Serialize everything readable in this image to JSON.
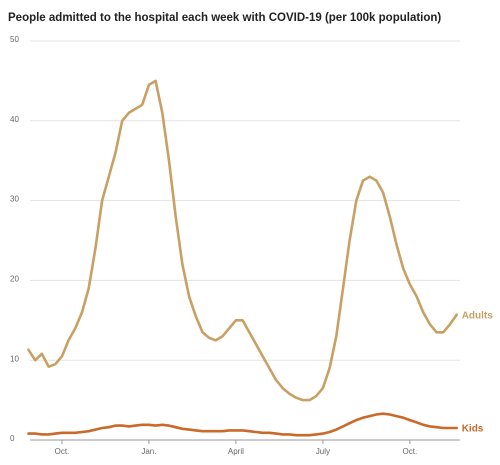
{
  "chart_data": {
    "type": "line",
    "title": "People admitted to the hospital each week with COVID-19 (per 100k population)",
    "categories": [
      null,
      null,
      null,
      null,
      null,
      "Oct.",
      null,
      null,
      null,
      null,
      null,
      null,
      null,
      null,
      null,
      null,
      null,
      null,
      "Jan.",
      null,
      null,
      null,
      null,
      null,
      null,
      null,
      null,
      null,
      null,
      null,
      null,
      "April",
      null,
      null,
      null,
      null,
      null,
      null,
      null,
      null,
      null,
      null,
      null,
      null,
      "July",
      null,
      null,
      null,
      null,
      null,
      null,
      null,
      null,
      null,
      null,
      null,
      null,
      "Oct.",
      null,
      null,
      null,
      null,
      null,
      null,
      null
    ],
    "series": [
      {
        "name": "Adults",
        "color": "#c9a064",
        "values": [
          11.3,
          10,
          10.8,
          9.2,
          9.5,
          10.5,
          12.5,
          14,
          16,
          19,
          24,
          30,
          33,
          36,
          40,
          41,
          41.5,
          42,
          44.5,
          45,
          41,
          35,
          28,
          22,
          18,
          15.5,
          13.5,
          12.8,
          12.5,
          13,
          14,
          15,
          15,
          13.5,
          12,
          10.5,
          9,
          7.5,
          6.5,
          5.8,
          5.3,
          5,
          5,
          5.5,
          6.5,
          9,
          13,
          19,
          25,
          30,
          32.5,
          33,
          32.5,
          31,
          28,
          24.5,
          21.5,
          19.5,
          18,
          16,
          14.5,
          13.5,
          13.5,
          14.5,
          15.7
        ]
      },
      {
        "name": "Kids",
        "color": "#c96a2a",
        "values": [
          0.8,
          0.8,
          0.7,
          0.7,
          0.8,
          0.9,
          0.9,
          0.9,
          1.0,
          1.1,
          1.3,
          1.5,
          1.6,
          1.8,
          1.8,
          1.7,
          1.8,
          1.9,
          1.9,
          1.8,
          1.9,
          1.8,
          1.6,
          1.4,
          1.3,
          1.2,
          1.1,
          1.1,
          1.1,
          1.1,
          1.2,
          1.2,
          1.2,
          1.1,
          1.0,
          0.9,
          0.9,
          0.8,
          0.7,
          0.7,
          0.6,
          0.6,
          0.6,
          0.7,
          0.8,
          1.0,
          1.3,
          1.7,
          2.1,
          2.5,
          2.8,
          3.0,
          3.2,
          3.3,
          3.2,
          3.0,
          2.8,
          2.5,
          2.2,
          1.9,
          1.7,
          1.6,
          1.5,
          1.5,
          1.5
        ]
      }
    ],
    "ylim": [
      0,
      50
    ],
    "yticks": [
      0,
      10,
      20,
      30,
      40,
      50
    ],
    "grid": true
  }
}
